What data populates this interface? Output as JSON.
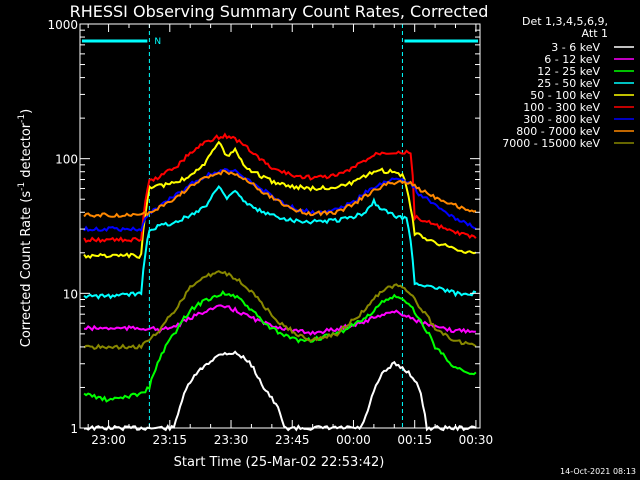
{
  "chart_data": {
    "type": "line",
    "title": "RHESSI Observing Summary Count Rates, Corrected",
    "ylabel_parts": [
      "Corrected Count Rate (s",
      "-1",
      " detector",
      "-1",
      ")"
    ],
    "xlabel": "Start Time (25-Mar-02 22:53:42)",
    "xlim_minutes": [
      -7,
      91
    ],
    "ylim": [
      1,
      1000
    ],
    "yscale": "log",
    "xticks": [
      {
        "t": 0,
        "label": "23:00"
      },
      {
        "t": 15,
        "label": "23:15"
      },
      {
        "t": 30,
        "label": "23:30"
      },
      {
        "t": 45,
        "label": "23:45"
      },
      {
        "t": 60,
        "label": "00:00"
      },
      {
        "t": 75,
        "label": "00:15"
      },
      {
        "t": 90,
        "label": "00:30"
      }
    ],
    "yticks": [
      {
        "v": 1,
        "label": "1"
      },
      {
        "v": 10,
        "label": "10"
      },
      {
        "v": 100,
        "label": "100"
      },
      {
        "v": 1000,
        "label": "1000"
      }
    ],
    "legend_header": [
      "Det 1,3,4,5,6,9,",
      "Att 1"
    ],
    "legend_position": "right",
    "night_marker": "N",
    "night_intervals_minutes": [
      [
        -7,
        10
      ],
      [
        72,
        91
      ]
    ],
    "series": [
      {
        "name": "3 - 6 keV",
        "color": "#ffffff",
        "x": [
          -6,
          0,
          8,
          10,
          13,
          17,
          20,
          24,
          28,
          31,
          34,
          38,
          42,
          46,
          50,
          56,
          63,
          67,
          70,
          72,
          74,
          76,
          80,
          84,
          88,
          90
        ],
        "y": [
          0,
          0,
          0,
          0,
          0,
          1.3,
          2.2,
          3,
          3.6,
          3.6,
          3.2,
          2,
          1.3,
          0,
          0,
          0,
          1.2,
          2.5,
          3,
          2.8,
          2.5,
          2,
          0,
          0,
          0,
          0
        ]
      },
      {
        "name": "6 - 12 keV",
        "color": "#ff00ff",
        "x": [
          -6,
          0,
          8,
          10,
          13,
          17,
          20,
          24,
          28,
          31,
          34,
          38,
          42,
          46,
          50,
          56,
          63,
          67,
          70,
          72,
          74,
          76,
          80,
          84,
          88,
          90
        ],
        "y": [
          5.5,
          5.5,
          5.5,
          5.5,
          5.3,
          5.8,
          6.5,
          7.5,
          8,
          7.5,
          6.8,
          6,
          5.6,
          5.2,
          5.1,
          5.4,
          6.2,
          7,
          7.3,
          7,
          6.6,
          6.2,
          5.6,
          5.3,
          5.3,
          5.3
        ]
      },
      {
        "name": "12 - 25 keV",
        "color": "#00ff00",
        "x": [
          -6,
          0,
          8,
          10,
          13,
          17,
          20,
          24,
          28,
          31,
          34,
          38,
          42,
          46,
          50,
          56,
          63,
          67,
          70,
          72,
          74,
          76,
          80,
          84,
          88,
          90
        ],
        "y": [
          1.8,
          1.6,
          1.8,
          2,
          3.5,
          5.5,
          7.5,
          9,
          10,
          9.5,
          8,
          6,
          5,
          4.5,
          4.5,
          5,
          6.5,
          8.5,
          9.5,
          9,
          8,
          6.5,
          4,
          3,
          2.5,
          2.5
        ]
      },
      {
        "name": "25 - 50 keV",
        "color": "#00ffff",
        "x": [
          -6,
          0,
          8,
          10,
          13,
          17,
          20,
          24,
          27,
          29,
          31,
          33,
          36,
          40,
          45,
          50,
          56,
          60,
          63,
          65,
          67,
          69,
          71,
          73,
          75,
          80,
          85,
          90
        ],
        "y": [
          9.5,
          9.5,
          10,
          30,
          32,
          34,
          38,
          45,
          62,
          52,
          58,
          48,
          42,
          38,
          35,
          34,
          35,
          37,
          40,
          48,
          42,
          39,
          37,
          36,
          12,
          11,
          10,
          10
        ]
      },
      {
        "name": "50 - 100 keV",
        "color": "#ffff00",
        "x": [
          -6,
          0,
          8,
          10,
          13,
          17,
          20,
          24,
          27,
          29,
          31,
          33,
          36,
          40,
          45,
          50,
          56,
          60,
          63,
          66,
          69,
          72,
          75,
          80,
          85,
          90
        ],
        "y": [
          19,
          19,
          19,
          60,
          63,
          68,
          75,
          95,
          130,
          105,
          118,
          90,
          78,
          68,
          62,
          60,
          62,
          66,
          74,
          82,
          80,
          76,
          28,
          24,
          21,
          20
        ]
      },
      {
        "name": "100 - 300 keV",
        "color": "#ff0000",
        "x": [
          -6,
          0,
          8,
          10,
          13,
          17,
          20,
          24,
          28,
          31,
          34,
          37,
          40,
          45,
          50,
          56,
          60,
          63,
          66,
          69,
          72,
          74,
          75,
          80,
          85,
          90
        ],
        "y": [
          25,
          25,
          25,
          68,
          75,
          90,
          110,
          135,
          148,
          140,
          120,
          100,
          85,
          75,
          72,
          75,
          85,
          98,
          110,
          112,
          112,
          110,
          37,
          32,
          28,
          26
        ]
      },
      {
        "name": "300 - 800 keV",
        "color": "#0000ff",
        "x": [
          -6,
          0,
          8,
          10,
          13,
          17,
          20,
          24,
          28,
          31,
          34,
          38,
          42,
          46,
          50,
          56,
          60,
          63,
          66,
          69,
          72,
          74,
          76,
          80,
          85,
          90
        ],
        "y": [
          30,
          30,
          30,
          40,
          45,
          55,
          64,
          75,
          82,
          80,
          70,
          58,
          48,
          42,
          40,
          42,
          48,
          56,
          64,
          70,
          70,
          66,
          55,
          45,
          36,
          31
        ]
      },
      {
        "name": "800 - 7000 keV",
        "color": "#ff8800",
        "x": [
          -6,
          0,
          8,
          10,
          13,
          17,
          20,
          24,
          28,
          31,
          34,
          38,
          42,
          46,
          50,
          56,
          60,
          63,
          66,
          69,
          72,
          74,
          76,
          80,
          85,
          90
        ],
        "y": [
          38,
          38,
          38,
          40,
          44,
          53,
          62,
          72,
          80,
          78,
          68,
          56,
          47,
          41,
          39,
          40,
          46,
          53,
          60,
          66,
          68,
          65,
          60,
          52,
          45,
          40
        ]
      },
      {
        "name": "7000 - 15000 keV",
        "color": "#888800",
        "x": [
          -6,
          0,
          8,
          10,
          13,
          17,
          20,
          24,
          28,
          31,
          34,
          38,
          42,
          46,
          50,
          56,
          63,
          67,
          70,
          72,
          74,
          76,
          80,
          84,
          88,
          90
        ],
        "y": [
          4,
          4,
          4,
          4.5,
          5.5,
          8,
          11,
          13.5,
          14.5,
          13,
          11,
          8,
          6,
          5,
          4.5,
          5,
          7.5,
          10.5,
          11.5,
          11,
          10,
          8,
          5.5,
          4.5,
          4.2,
          4
        ]
      }
    ]
  },
  "footer": {
    "timestamp": "14-Oct-2021 08:13"
  }
}
